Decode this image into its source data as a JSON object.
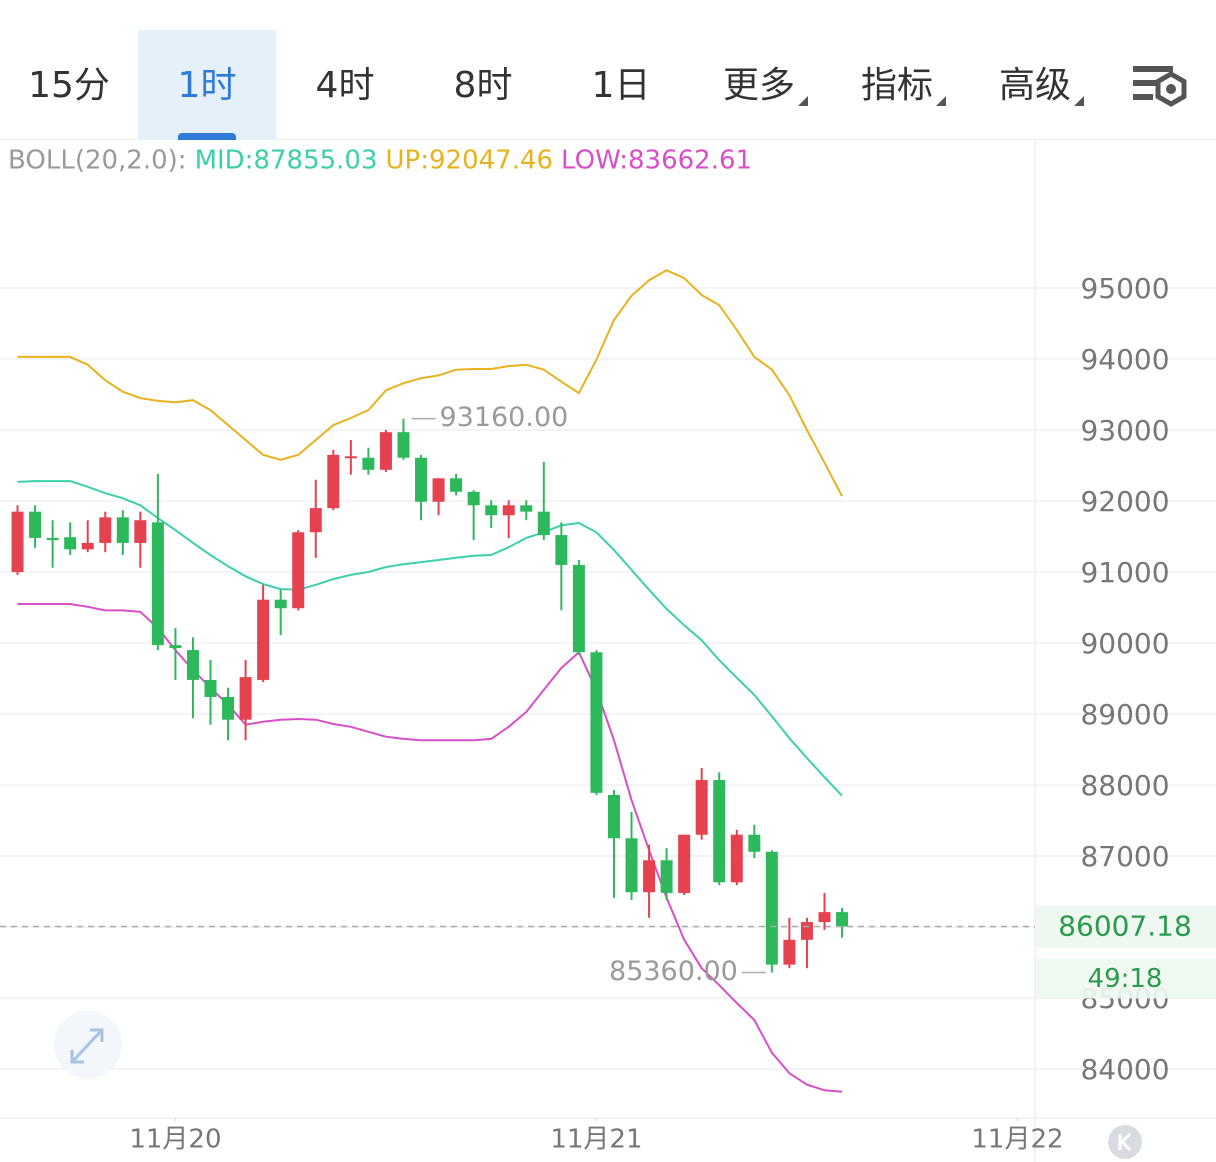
{
  "tabs": {
    "items": [
      "15分",
      "1时",
      "4时",
      "8时",
      "1日",
      "更多",
      "指标",
      "高级"
    ],
    "active": 1
  },
  "chart_data": {
    "type": "candlestick",
    "indicator": "BOLL(20,2.0):",
    "x": [
      -9,
      -8,
      -7,
      -6,
      -5,
      -4,
      -3,
      -2,
      -1,
      0,
      1,
      2,
      3,
      4,
      5,
      6,
      7,
      8,
      9,
      10,
      11,
      12,
      13,
      14,
      15,
      16,
      17,
      18,
      19,
      20,
      21,
      22,
      23,
      24,
      25,
      26,
      27,
      28,
      29,
      30,
      31,
      32,
      33,
      34,
      35,
      36,
      37,
      38
    ],
    "open": [
      91000,
      91850,
      91480,
      91490,
      91320,
      91410,
      91770,
      91410,
      91700,
      89970,
      89900,
      89480,
      89240,
      88920,
      89480,
      90610,
      90490,
      91560,
      91900,
      92610,
      92610,
      92440,
      92970,
      92610,
      91990,
      92320,
      92130,
      91940,
      91800,
      91940,
      91850,
      91520,
      91100,
      89870,
      87860,
      87250,
      86490,
      86940,
      86480,
      87300,
      88070,
      86630,
      87300,
      87060,
      85470,
      85820,
      86070,
      86210
    ],
    "high": [
      91940,
      91940,
      91730,
      91700,
      91730,
      91850,
      91870,
      91850,
      92380,
      90210,
      90080,
      89760,
      89370,
      89760,
      90820,
      90750,
      91590,
      92300,
      92720,
      92860,
      92750,
      93000,
      93160,
      92650,
      92320,
      92380,
      92150,
      92010,
      92010,
      92010,
      92550,
      91700,
      91170,
      89900,
      87930,
      87620,
      87160,
      87110,
      87300,
      88240,
      88180,
      87370,
      87440,
      87080,
      86130,
      86130,
      86480,
      86270
    ],
    "low": [
      90960,
      91340,
      91060,
      91240,
      91280,
      91280,
      91240,
      91060,
      89900,
      89480,
      88940,
      88850,
      88630,
      88630,
      89450,
      90110,
      90460,
      91200,
      91870,
      92370,
      92370,
      92410,
      92580,
      91730,
      91800,
      92080,
      91450,
      91620,
      91480,
      91730,
      91450,
      90460,
      89830,
      87860,
      86410,
      86380,
      86130,
      86380,
      86450,
      87230,
      86590,
      86590,
      86970,
      85360,
      85420,
      85420,
      85960,
      85850
    ],
    "close": [
      91850,
      91480,
      91450,
      91320,
      91410,
      91770,
      91410,
      91730,
      89970,
      89930,
      89480,
      89240,
      88920,
      89520,
      90610,
      90490,
      91560,
      91900,
      92650,
      92630,
      92440,
      92970,
      92610,
      91990,
      92320,
      92130,
      91940,
      91800,
      91940,
      91850,
      91520,
      91100,
      89870,
      87890,
      87250,
      86490,
      86940,
      86480,
      87300,
      88070,
      86630,
      87300,
      87060,
      85470,
      85820,
      86070,
      86210,
      86007.18
    ],
    "up_color": "#e5414f",
    "down_color": "#2eb85c",
    "series": [
      {
        "name": "MID:87855.03",
        "color": "#3ccfac",
        "values": [
          92270,
          92280,
          92280,
          92280,
          92200,
          92110,
          92040,
          91940,
          91760,
          91590,
          91410,
          91240,
          91080,
          90940,
          90830,
          90760,
          90750,
          90820,
          90900,
          90960,
          91000,
          91070,
          91110,
          91140,
          91170,
          91200,
          91230,
          91240,
          91350,
          91480,
          91560,
          91660,
          91690,
          91560,
          91310,
          91030,
          90750,
          90480,
          90250,
          90040,
          89760,
          89510,
          89270,
          88970,
          88660,
          88380,
          88110,
          87850
        ]
      },
      {
        "name": "UP:92047.46",
        "color": "#e8b21e",
        "values": [
          94030,
          94030,
          94030,
          94030,
          93920,
          93700,
          93540,
          93450,
          93410,
          93390,
          93420,
          93280,
          93070,
          92860,
          92650,
          92580,
          92650,
          92860,
          93070,
          93170,
          93280,
          93560,
          93660,
          93730,
          93770,
          93850,
          93860,
          93860,
          93900,
          93920,
          93850,
          93680,
          93520,
          93990,
          94550,
          94890,
          95110,
          95250,
          95140,
          94900,
          94760,
          94410,
          94030,
          93850,
          93490,
          93000,
          92540,
          92070
        ]
      },
      {
        "name": "LOW:83662.61",
        "color": "#d84fc8",
        "values": [
          90550,
          90550,
          90550,
          90550,
          90510,
          90460,
          90460,
          90440,
          90210,
          89900,
          89620,
          89370,
          89130,
          88850,
          88890,
          88920,
          88930,
          88920,
          88860,
          88820,
          88750,
          88680,
          88650,
          88630,
          88630,
          88630,
          88630,
          88650,
          88820,
          89030,
          89340,
          89650,
          89870,
          89340,
          88630,
          87790,
          87080,
          86410,
          85820,
          85420,
          85180,
          84930,
          84690,
          84230,
          83940,
          83780,
          83700,
          83680
        ]
      }
    ],
    "xlim": [
      -10,
      49
    ],
    "xticks": [
      {
        "value": 0,
        "label": "11月20"
      },
      {
        "value": 24,
        "label": "11月21"
      },
      {
        "value": 48,
        "label": "11月22"
      }
    ],
    "ylim": [
      83310,
      97085
    ],
    "yticks": [
      84000,
      85000,
      86000,
      87000,
      88000,
      89000,
      90000,
      91000,
      92000,
      93000,
      94000,
      95000
    ],
    "grid": true,
    "annotations": [
      {
        "x": 13,
        "value": 93160,
        "label": "93160.00"
      },
      {
        "x": 34,
        "value": 85360,
        "label": "85360.00"
      }
    ],
    "countdown": "49:18"
  }
}
